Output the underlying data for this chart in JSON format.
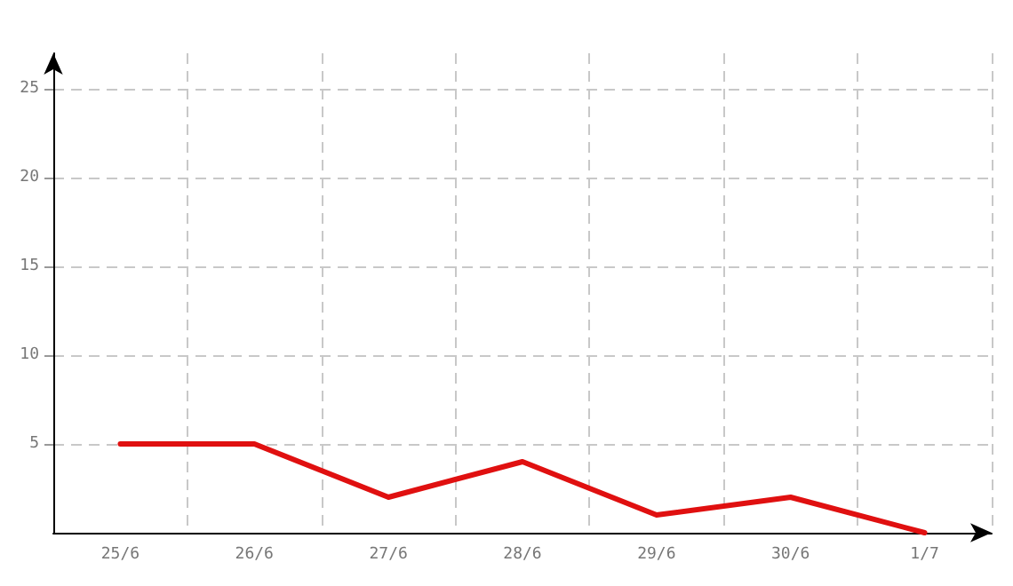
{
  "chart_data": {
    "type": "line",
    "categories": [
      "25/6",
      "26/6",
      "27/6",
      "28/6",
      "29/6",
      "30/6",
      "1/7"
    ],
    "series": [
      {
        "color": "#e01010",
        "values": [
          5,
          5,
          2,
          4,
          1,
          2,
          0
        ]
      }
    ],
    "ylim": [
      0,
      27
    ],
    "yticks": [
      5,
      10,
      15,
      20,
      25
    ],
    "grid": true,
    "marker": "none",
    "line_style": "solid"
  }
}
